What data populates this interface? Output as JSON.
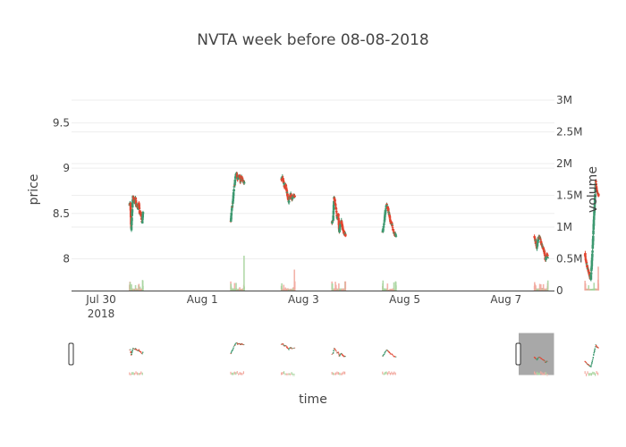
{
  "chart_data": {
    "type": "candlestick",
    "title": "NVTA week before 08-08-2018",
    "xlabel": "time",
    "ylabel": "price",
    "y2label": "volume",
    "x_range": [
      "2018-07-29 10:00",
      "2018-08-07 23:00"
    ],
    "y_range": [
      7.65,
      9.75
    ],
    "y2_range": [
      0,
      3000000
    ],
    "x_ticks": [
      {
        "date": "2018-07-30",
        "label": "Jul 30",
        "sublabel": "2018"
      },
      {
        "date": "2018-08-01",
        "label": "Aug 1",
        "sublabel": ""
      },
      {
        "date": "2018-08-03",
        "label": "Aug 3",
        "sublabel": ""
      },
      {
        "date": "2018-08-05",
        "label": "Aug 5",
        "sublabel": ""
      },
      {
        "date": "2018-08-07",
        "label": "Aug 7",
        "sublabel": ""
      }
    ],
    "y_ticks": [
      {
        "value": 8,
        "label": "8"
      },
      {
        "value": 8.5,
        "label": "8.5"
      },
      {
        "value": 9,
        "label": "9"
      },
      {
        "value": 9.5,
        "label": "9.5"
      }
    ],
    "y2_ticks": [
      {
        "value": 0,
        "label": "0"
      },
      {
        "value": 500000,
        "label": "0.5M"
      },
      {
        "value": 1000000,
        "label": "1M"
      },
      {
        "value": 1500000,
        "label": "1.5M"
      },
      {
        "value": 2000000,
        "label": "2M"
      },
      {
        "value": 2500000,
        "label": "2.5M"
      },
      {
        "value": 3000000,
        "label": "3M"
      }
    ],
    "sessions": [
      {
        "date": "2018-07-30",
        "prices": [
          8.6,
          8.62,
          8.32,
          8.5,
          8.7,
          8.66,
          8.62,
          8.68,
          8.58,
          8.6,
          8.55,
          8.62,
          8.5,
          8.52,
          8.45,
          8.4,
          8.52
        ]
      },
      {
        "date": "2018-08-01",
        "prices": [
          8.42,
          8.55,
          8.62,
          8.75,
          8.82,
          8.92,
          8.95,
          8.88,
          8.9,
          8.92,
          8.85,
          8.9,
          8.88,
          8.85,
          8.84
        ]
      },
      {
        "date": "2018-08-02",
        "prices": [
          8.88,
          8.9,
          8.85,
          8.78,
          8.82,
          8.75,
          8.7,
          8.62,
          8.68,
          8.72,
          8.65,
          8.7,
          8.68,
          8.7
        ]
      },
      {
        "date": "2018-08-03",
        "prices": [
          8.4,
          8.42,
          8.68,
          8.62,
          8.55,
          8.45,
          8.5,
          8.3,
          8.38,
          8.42,
          8.35,
          8.3,
          8.28,
          8.26
        ]
      },
      {
        "date": "2018-08-04",
        "prices": [
          8.3,
          8.38,
          8.52,
          8.6,
          8.55,
          8.48,
          8.4,
          8.38,
          8.3,
          8.28,
          8.25
        ]
      },
      {
        "date": "2018-08-07",
        "prices": [
          8.25,
          8.18,
          8.12,
          8.22,
          8.25,
          8.2,
          8.15,
          8.12,
          8.08,
          7.98,
          8.05,
          8.02
        ]
      },
      {
        "date": "2018-08-08",
        "prices": [
          8.05,
          7.98,
          7.92,
          7.88,
          7.85,
          7.8,
          7.78,
          7.95,
          8.15,
          8.4,
          8.6,
          8.88,
          8.75,
          8.72,
          8.7
        ]
      }
    ],
    "colors": {
      "up": "#3d9970",
      "down": "#e2442f",
      "volume_up": "#a9d5a0",
      "volume_down": "#f2aaa0",
      "grid": "#eeeeee",
      "rangeslider_mask": "#999999"
    },
    "grid": true,
    "legend": "none",
    "rangeslider": true
  }
}
